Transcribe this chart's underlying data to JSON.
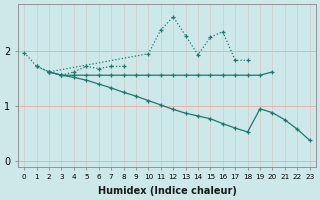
{
  "xlabel": "Humidex (Indice chaleur)",
  "background_color": "#cce8e8",
  "grid_color": "#e8b0b0",
  "line_color": "#1a7a6e",
  "x_values": [
    0,
    1,
    2,
    3,
    4,
    5,
    6,
    7,
    8,
    9,
    10,
    11,
    12,
    13,
    14,
    15,
    16,
    17,
    18,
    19,
    20,
    21,
    22,
    23
  ],
  "lines": [
    {
      "y": [
        1.97,
        1.72,
        1.62,
        null,
        null,
        null,
        null,
        null,
        null,
        null,
        1.95,
        2.38,
        2.62,
        2.28,
        1.93,
        2.25,
        2.35,
        1.83,
        1.83,
        null,
        null,
        null,
        null,
        null
      ],
      "style": "dotted"
    },
    {
      "y": [
        null,
        1.72,
        1.62,
        1.56,
        1.62,
        1.72,
        1.68,
        1.72,
        1.72,
        null,
        null,
        null,
        null,
        null,
        null,
        null,
        null,
        null,
        null,
        null,
        null,
        null,
        null,
        null
      ],
      "style": "dotted"
    },
    {
      "y": [
        null,
        null,
        1.62,
        1.56,
        1.56,
        1.56,
        1.56,
        1.56,
        1.56,
        1.56,
        1.56,
        1.56,
        1.56,
        1.56,
        1.56,
        1.56,
        1.56,
        1.56,
        1.56,
        1.56,
        1.62,
        null,
        null,
        null
      ],
      "style": "solid"
    },
    {
      "y": [
        null,
        null,
        1.62,
        1.56,
        1.52,
        1.47,
        1.4,
        1.33,
        1.25,
        1.18,
        1.1,
        1.02,
        0.94,
        0.87,
        0.82,
        0.77,
        0.68,
        0.6,
        0.53,
        0.95,
        0.88,
        0.75,
        0.58,
        0.38
      ],
      "style": "solid"
    }
  ],
  "ylim": [
    -0.1,
    2.85
  ],
  "xlim": [
    -0.5,
    23.5
  ],
  "yticks": [
    0,
    1,
    2
  ],
  "xticks": [
    0,
    1,
    2,
    3,
    4,
    5,
    6,
    7,
    8,
    9,
    10,
    11,
    12,
    13,
    14,
    15,
    16,
    17,
    18,
    19,
    20,
    21,
    22,
    23
  ]
}
